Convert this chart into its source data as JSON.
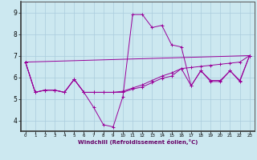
{
  "xlabel": "Windchill (Refroidissement éolien,°C)",
  "ylabel": "",
  "background_color": "#cce8f0",
  "grid_color": "#aaccdd",
  "line_color": "#990099",
  "xlim": [
    -0.5,
    23.5
  ],
  "ylim": [
    3.5,
    9.5
  ],
  "yticks": [
    4,
    5,
    6,
    7,
    8,
    9
  ],
  "xticks": [
    0,
    1,
    2,
    3,
    4,
    5,
    6,
    7,
    8,
    9,
    10,
    11,
    12,
    13,
    14,
    15,
    16,
    17,
    18,
    19,
    20,
    21,
    22,
    23
  ],
  "line1_x": [
    0,
    1,
    2,
    3,
    4,
    5,
    6,
    7,
    8,
    9,
    10,
    11,
    12,
    13,
    14,
    15,
    16,
    17,
    18,
    19,
    20,
    21,
    22,
    23
  ],
  "line1_y": [
    6.7,
    5.3,
    5.4,
    5.4,
    5.3,
    5.9,
    5.3,
    4.6,
    3.8,
    3.7,
    5.1,
    8.9,
    8.9,
    8.3,
    8.4,
    7.5,
    7.4,
    5.6,
    6.3,
    5.8,
    5.8,
    6.3,
    5.8,
    7.0
  ],
  "line2_x": [
    0,
    1,
    2,
    3,
    4,
    5,
    6,
    7,
    8,
    9,
    10,
    11,
    12,
    13,
    14,
    15,
    16,
    17,
    18,
    19,
    20,
    21,
    22,
    23
  ],
  "line2_y": [
    6.7,
    5.3,
    5.4,
    5.4,
    5.3,
    5.9,
    5.3,
    5.3,
    5.3,
    5.3,
    5.35,
    5.5,
    5.65,
    5.85,
    6.05,
    6.2,
    6.4,
    6.45,
    6.5,
    6.55,
    6.6,
    6.65,
    6.7,
    7.0
  ],
  "line3_x": [
    0,
    23
  ],
  "line3_y": [
    6.7,
    7.0
  ],
  "line4_x": [
    0,
    1,
    2,
    3,
    4,
    5,
    6,
    7,
    8,
    9,
    10,
    11,
    12,
    13,
    14,
    15,
    16,
    17,
    18,
    19,
    20,
    21,
    22,
    23
  ],
  "line4_y": [
    6.7,
    5.3,
    5.4,
    5.4,
    5.3,
    5.9,
    5.3,
    5.3,
    5.3,
    5.3,
    5.3,
    5.45,
    5.55,
    5.75,
    5.95,
    6.05,
    6.4,
    5.6,
    6.3,
    5.85,
    5.85,
    6.3,
    5.85,
    7.0
  ]
}
